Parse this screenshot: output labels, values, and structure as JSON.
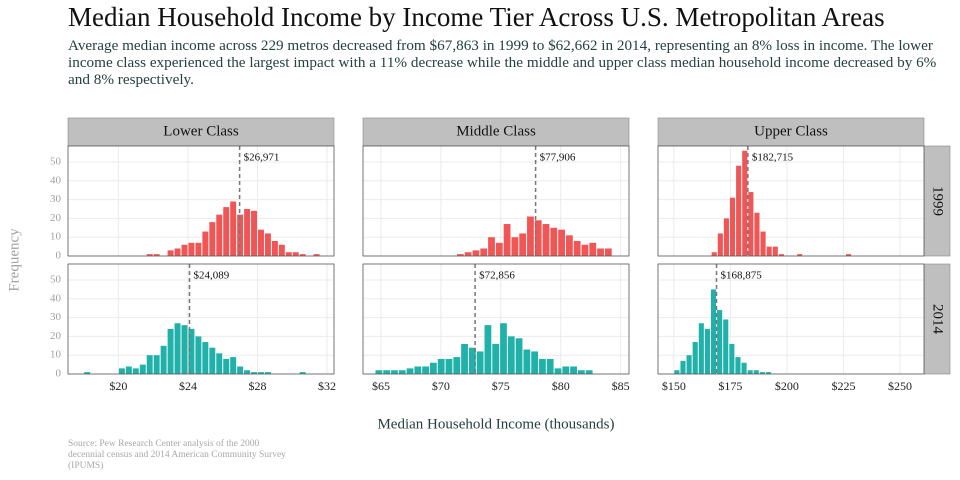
{
  "title": "Median Household Income by Income Tier Across U.S. Metropolitan Areas",
  "subtitle": "Average median income across 229 metros decreased from $67,863 in 1999 to $62,662 in 2014, representing an 8% loss in income. The lower income class experienced the largest impact with a 11% decrease while the middle and upper class median household income decreased by 6% and 8% respectively.",
  "x_label": "Median Household Income (thousands)",
  "y_label": "Frequency",
  "source": "Source: Pew Research Center analysis of the 2000 decennial census and 2014 American Community Survey (IPUMS)",
  "rows": [
    {
      "label": "1999",
      "color": "#f05656"
    },
    {
      "label": "2014",
      "color": "#20b2aa"
    }
  ],
  "ylim": [
    0,
    58.5
  ],
  "yticks": [
    0,
    10,
    20,
    30,
    40,
    50
  ],
  "grid": true,
  "chart_data": [
    {
      "type": "histogram",
      "facet": "Lower Class",
      "xlim": [
        17.1,
        32.4
      ],
      "xticks": [
        {
          "value": 20,
          "label": "$20"
        },
        {
          "value": 24,
          "label": "$24"
        },
        {
          "value": 28,
          "label": "$28"
        },
        {
          "value": 32,
          "label": "$32"
        }
      ],
      "series": [
        {
          "bins": [
            21.6,
            22,
            22.4,
            22.8,
            23.2,
            23.6,
            24,
            24.4,
            24.8,
            25.2,
            25.6,
            26,
            26.4,
            26.8,
            27.2,
            27.6,
            28,
            28.4,
            28.8,
            29.2,
            29.6,
            30,
            30.4,
            30.8,
            31.2,
            31.6
          ],
          "values": [
            1,
            1,
            0,
            3,
            4,
            6,
            7,
            7,
            13,
            18,
            22,
            26,
            29,
            22,
            25,
            24,
            14,
            12,
            8,
            6,
            2,
            2,
            1,
            0,
            1
          ],
          "marker": {
            "value": 26.971,
            "label": "$26,971"
          }
        },
        {
          "bins": [
            18,
            18.4,
            18.8,
            19.2,
            19.6,
            20,
            20.4,
            20.8,
            21.2,
            21.6,
            22,
            22.4,
            22.8,
            23.2,
            23.6,
            24,
            24.4,
            24.8,
            25.2,
            25.6,
            26,
            26.4,
            26.8,
            27.2,
            27.6,
            28,
            28.4,
            28.8,
            29.2,
            29.6,
            30,
            30.4,
            30.8
          ],
          "values": [
            1,
            0,
            0,
            0,
            0,
            3,
            4,
            3,
            5,
            10,
            10,
            15,
            24,
            27,
            26,
            24,
            20,
            17,
            14,
            11,
            8,
            9,
            4,
            2,
            1,
            1,
            1,
            0,
            0,
            0,
            0,
            1
          ],
          "marker": {
            "value": 24.089,
            "label": "$24,089"
          }
        }
      ]
    },
    {
      "type": "histogram",
      "facet": "Middle Class",
      "xlim": [
        63.5,
        85.7
      ],
      "xticks": [
        {
          "value": 65,
          "label": "$65"
        },
        {
          "value": 70,
          "label": "$70"
        },
        {
          "value": 75,
          "label": "$75"
        },
        {
          "value": 80,
          "label": "$80"
        },
        {
          "value": 85,
          "label": "$85"
        }
      ],
      "series": [
        {
          "bins": [
            71.3,
            71.95,
            72.6,
            73.25,
            73.9,
            74.55,
            75.2,
            75.85,
            76.5,
            77.15,
            77.8,
            78.45,
            79.1,
            79.75,
            80.4,
            81.05,
            81.7,
            82.35,
            83,
            83.65,
            84.3
          ],
          "values": [
            1,
            2,
            3,
            4,
            10,
            7,
            17,
            10,
            12,
            21,
            19,
            17,
            15,
            14,
            11,
            8,
            6,
            7,
            4,
            4
          ],
          "marker": {
            "value": 77.906,
            "label": "$77,906"
          }
        },
        {
          "bins": [
            64.5,
            65.15,
            65.8,
            66.45,
            67.1,
            67.75,
            68.4,
            69.05,
            69.7,
            70.35,
            71,
            71.65,
            72.3,
            72.95,
            73.6,
            74.25,
            74.9,
            75.55,
            76.2,
            76.85,
            77.5,
            78.15,
            78.8,
            79.45,
            80.1,
            80.75,
            81.4,
            82.05,
            82.7
          ],
          "values": [
            2,
            2,
            2,
            2,
            3,
            4,
            4,
            6,
            8,
            8,
            9,
            16,
            14,
            12,
            26,
            16,
            27,
            20,
            19,
            13,
            12,
            8,
            8,
            3,
            4,
            4,
            2,
            2
          ],
          "marker": {
            "value": 72.856,
            "label": "$72,856"
          }
        }
      ]
    },
    {
      "type": "histogram",
      "facet": "Upper Class",
      "xlim": [
        143,
        260.6
      ],
      "xticks": [
        {
          "value": 150,
          "label": "$150"
        },
        {
          "value": 175,
          "label": "$175"
        },
        {
          "value": 200,
          "label": "$200"
        },
        {
          "value": 225,
          "label": "$225"
        },
        {
          "value": 250,
          "label": "$250"
        }
      ],
      "series": [
        {
          "bins": [
            166.5,
            169.2,
            171.9,
            174.6,
            177.3,
            180,
            182.7,
            185.4,
            188.1,
            190.8,
            193.5,
            196.2,
            198.9,
            201.6,
            204.3,
            207,
            209.7,
            212.4,
            215.1,
            217.8,
            220.5,
            223.2,
            225.9,
            228.6
          ],
          "values": [
            2,
            12,
            20,
            31,
            48,
            56,
            34,
            23,
            13,
            5,
            5,
            1,
            0,
            0,
            1,
            0,
            0,
            0,
            0,
            0,
            0,
            0,
            1
          ],
          "marker": {
            "value": 182.715,
            "label": "$182,715"
          }
        },
        {
          "bins": [
            150,
            152.7,
            155.4,
            158.1,
            160.8,
            163.5,
            166.2,
            168.9,
            171.6,
            174.3,
            177,
            179.7,
            182.4,
            185.1,
            187.8,
            190.5,
            193.2
          ],
          "values": [
            2,
            7,
            10,
            17,
            27,
            24,
            45,
            34,
            29,
            16,
            9,
            6,
            2,
            2,
            1,
            1
          ],
          "marker": {
            "value": 168.875,
            "label": "$168,875"
          }
        }
      ]
    }
  ]
}
